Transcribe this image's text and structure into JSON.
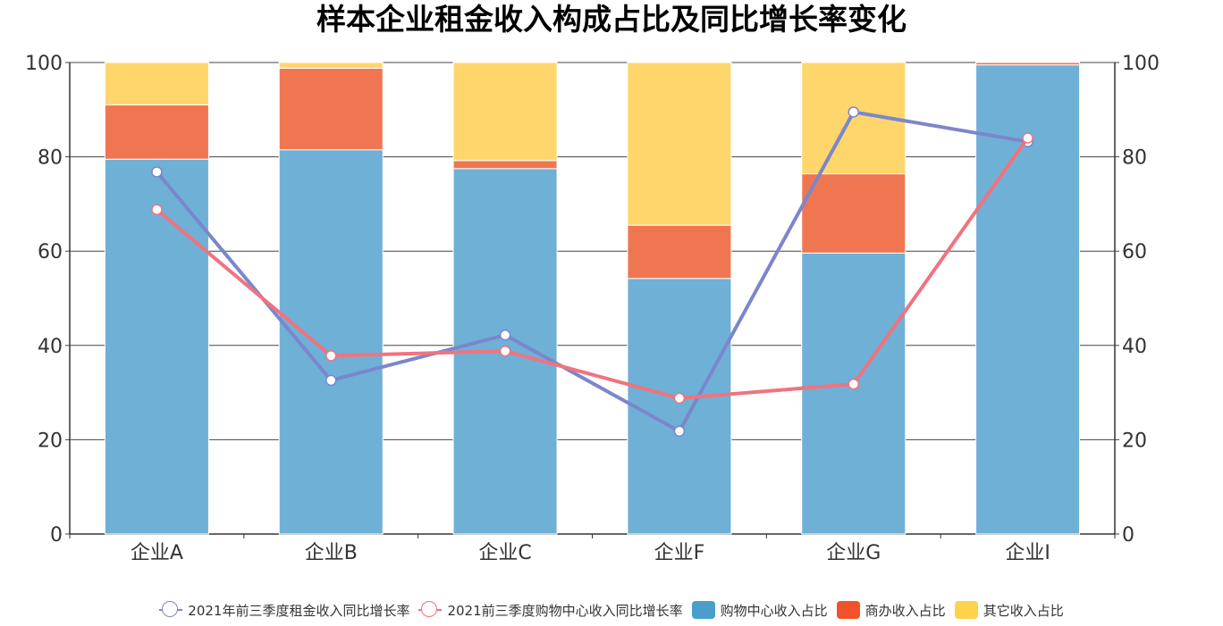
{
  "chart_data": {
    "type": "bar",
    "title": "样本企业租金收入构成占比及同比增长率变化",
    "categories": [
      "企业A",
      "企业B",
      "企业C",
      "企业F",
      "企业G",
      "企业I"
    ],
    "stacked": true,
    "ylim_left": [
      0,
      100
    ],
    "ylim_right": [
      0,
      100
    ],
    "y_ticks": [
      "0",
      "20",
      "40",
      "60",
      "80",
      "100"
    ],
    "grid": true,
    "legend_position": "bottom",
    "series": [
      {
        "name": "购物中心收入占比",
        "kind": "bar",
        "axis": "left",
        "color": "#6fb0d6",
        "legend_color": "#4a9ecc",
        "values": [
          79.5,
          81.5,
          77.5,
          54.2,
          59.6,
          99.5
        ]
      },
      {
        "name": "商办收入占比",
        "kind": "bar",
        "axis": "left",
        "color": "#f07651",
        "legend_color": "#f0532a",
        "values": [
          11.5,
          17.3,
          1.7,
          11.3,
          16.8,
          0.5
        ]
      },
      {
        "name": "其它收入占比",
        "kind": "bar",
        "axis": "left",
        "color": "#ffd66b",
        "legend_color": "#ffd24c",
        "values": [
          9.0,
          1.2,
          20.8,
          34.5,
          23.6,
          0
        ]
      },
      {
        "name": "2021年前三季度租金收入同比增长率",
        "kind": "line",
        "axis": "right",
        "color": "#7b86cc",
        "values": [
          76.8,
          32.6,
          42.2,
          21.8,
          89.5,
          83.2
        ]
      },
      {
        "name": "2021前三季度购物中心收入同比增长率",
        "kind": "line",
        "axis": "right",
        "color": "#f0737e",
        "values": [
          68.8,
          37.8,
          38.8,
          28.8,
          31.8,
          84.0
        ]
      }
    ],
    "legend_order": [
      "2021年前三季度租金收入同比增长率",
      "2021前三季度购物中心收入同比增长率",
      "购物中心收入占比",
      "商办收入占比",
      "其它收入占比"
    ]
  }
}
